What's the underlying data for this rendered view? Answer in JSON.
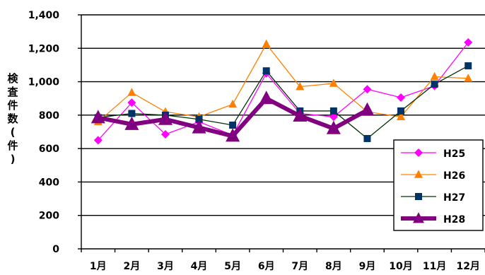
{
  "chart_data": {
    "type": "line",
    "categories": [
      "1月",
      "2月",
      "3月",
      "4月",
      "5月",
      "6月",
      "7月",
      "8月",
      "9月",
      "10月",
      "11月",
      "12月"
    ],
    "ylabel": "検査件数(件)",
    "ylim": [
      0,
      1400
    ],
    "yticks": [
      0,
      200,
      400,
      600,
      800,
      1000,
      1200,
      1400
    ],
    "ytick_labels": [
      "0",
      "200",
      "400",
      "600",
      "800",
      "1,000",
      "1,200",
      "1,400"
    ],
    "grid": true,
    "legend_position": "bottom-right",
    "series": [
      {
        "name": "H25",
        "color": "#ff00ff",
        "marker": "diamond",
        "line_width": 1.3,
        "values": [
          650,
          875,
          685,
          760,
          680,
          1050,
          810,
          790,
          955,
          905,
          975,
          1235
        ]
      },
      {
        "name": "H26",
        "color": "#ff8000",
        "marker": "triangle",
        "line_width": 1.3,
        "values": [
          760,
          935,
          820,
          790,
          865,
          1225,
          970,
          990,
          820,
          790,
          1030,
          1020
        ]
      },
      {
        "name": "H27",
        "color": "#003300",
        "marker": "square",
        "marker_color": "#003366",
        "line_width": 1.3,
        "values": [
          785,
          810,
          800,
          775,
          740,
          1065,
          825,
          825,
          660,
          825,
          985,
          1095
        ]
      },
      {
        "name": "H28",
        "color": "#800080",
        "marker": "triangle",
        "line_width": 6,
        "values": [
          785,
          745,
          775,
          725,
          675,
          900,
          795,
          720,
          830,
          null,
          null,
          null
        ]
      }
    ]
  }
}
